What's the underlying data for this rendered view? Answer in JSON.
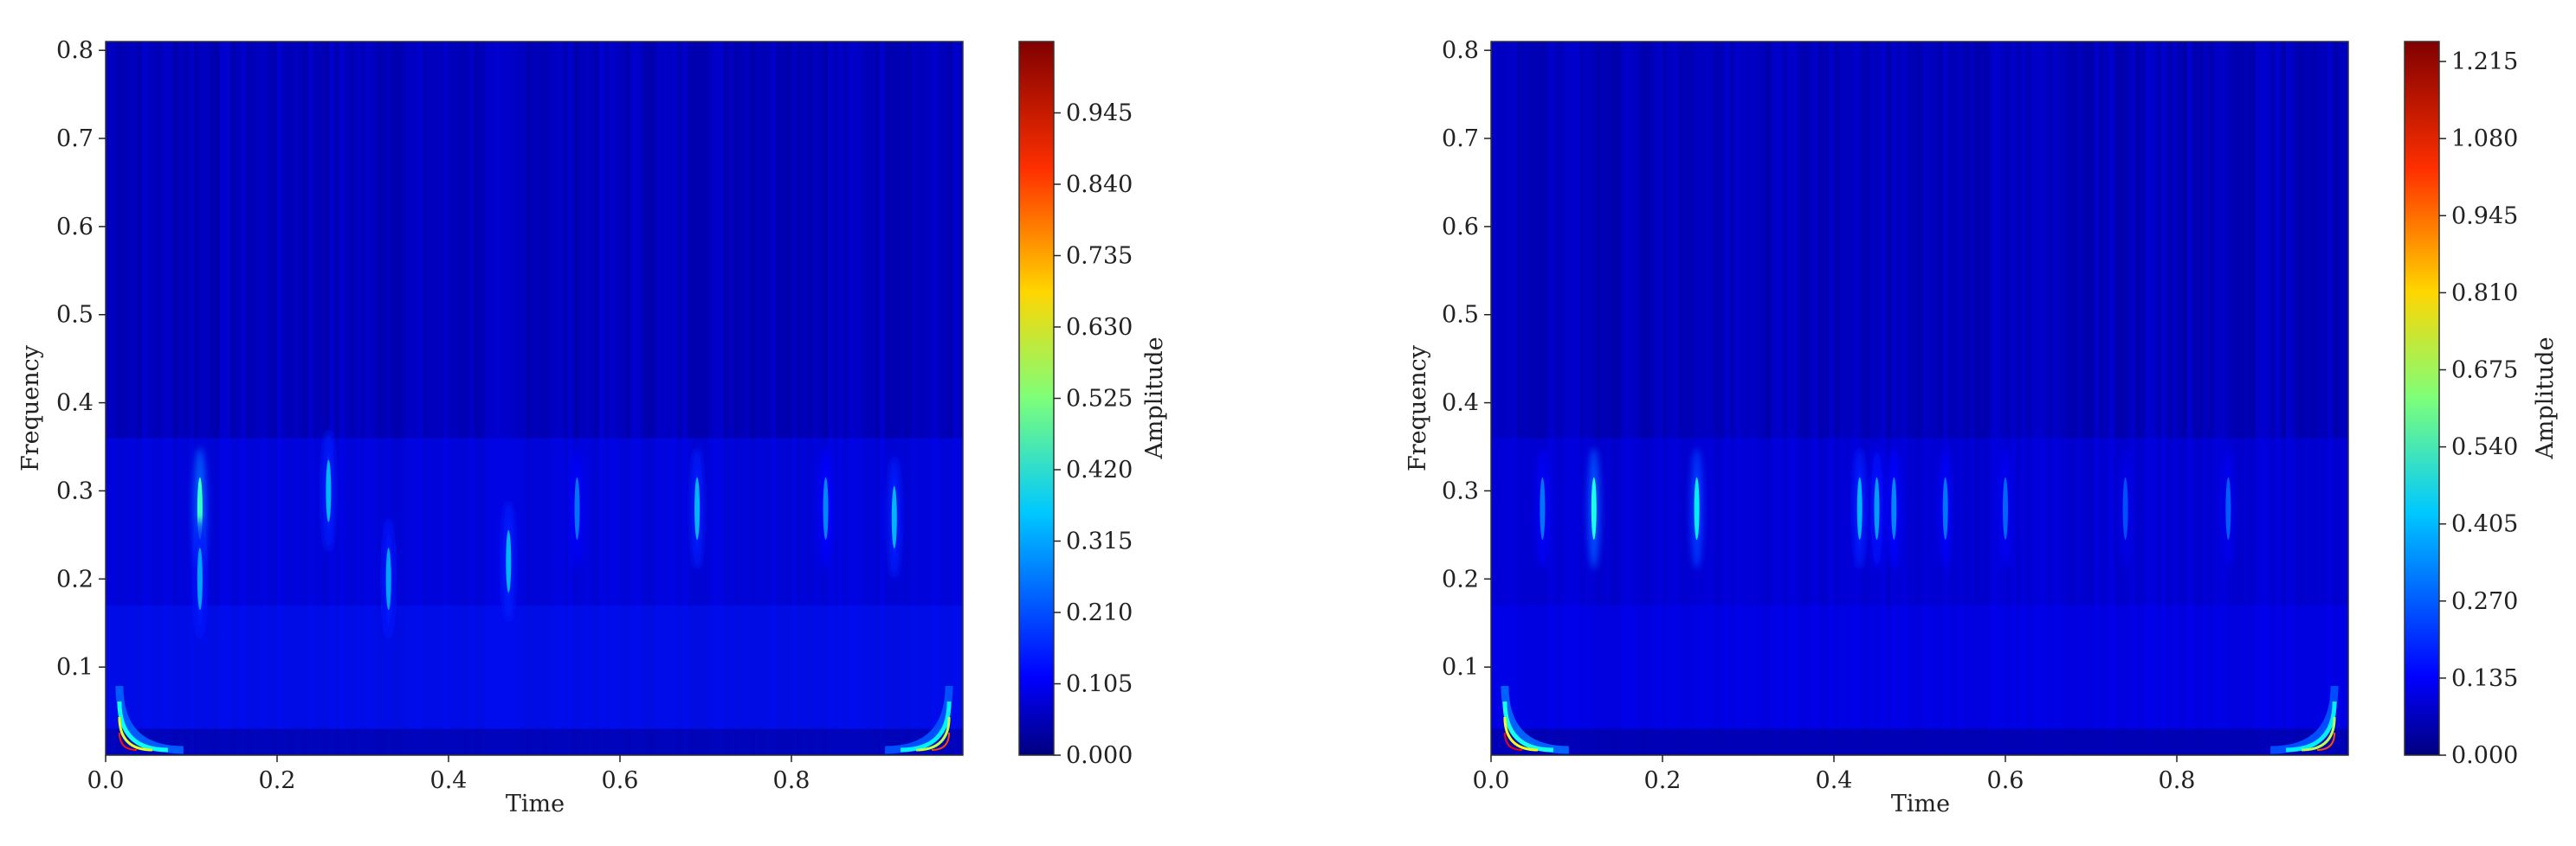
{
  "chart_data": [
    {
      "type": "heatmap",
      "title": "",
      "xlabel": "Time",
      "ylabel": "Frequency",
      "colorbar_label": "Amplitude",
      "xlim": [
        0.0,
        1.0
      ],
      "ylim": [
        0.0,
        0.81
      ],
      "xticks": [
        "0.0",
        "0.2",
        "0.4",
        "0.6",
        "0.8"
      ],
      "xtick_values": [
        0.0,
        0.2,
        0.4,
        0.6,
        0.8
      ],
      "yticks": [
        "0.1",
        "0.2",
        "0.3",
        "0.4",
        "0.5",
        "0.6",
        "0.7",
        "0.8"
      ],
      "ytick_values": [
        0.1,
        0.2,
        0.3,
        0.4,
        0.5,
        0.6,
        0.7,
        0.8
      ],
      "colorbar_ticks": [
        "0.000",
        "0.105",
        "0.210",
        "0.315",
        "0.420",
        "0.525",
        "0.630",
        "0.735",
        "0.840",
        "0.945"
      ],
      "colorbar_tick_values": [
        0.0,
        0.105,
        0.21,
        0.315,
        0.42,
        0.525,
        0.63,
        0.735,
        0.84,
        0.945
      ],
      "color_range": [
        0.0,
        1.05
      ],
      "colormap": "jet",
      "background_amplitude": 0.06,
      "hotspots": [
        {
          "time": 0.01,
          "freq": 0.01,
          "amplitude": 0.9
        },
        {
          "time": 0.99,
          "freq": 0.01,
          "amplitude": 0.85
        },
        {
          "time": 0.11,
          "freq": 0.28,
          "amplitude": 0.45
        },
        {
          "time": 0.11,
          "freq": 0.2,
          "amplitude": 0.3
        },
        {
          "time": 0.26,
          "freq": 0.3,
          "amplitude": 0.32
        },
        {
          "time": 0.33,
          "freq": 0.2,
          "amplitude": 0.3
        },
        {
          "time": 0.47,
          "freq": 0.22,
          "amplitude": 0.32
        },
        {
          "time": 0.55,
          "freq": 0.28,
          "amplitude": 0.25
        },
        {
          "time": 0.69,
          "freq": 0.28,
          "amplitude": 0.32
        },
        {
          "time": 0.84,
          "freq": 0.28,
          "amplitude": 0.27
        },
        {
          "time": 0.92,
          "freq": 0.27,
          "amplitude": 0.32
        }
      ]
    },
    {
      "type": "heatmap",
      "title": "",
      "xlabel": "Time",
      "ylabel": "Frequency",
      "colorbar_label": "Amplitude",
      "xlim": [
        0.0,
        1.0
      ],
      "ylim": [
        0.0,
        0.81
      ],
      "xticks": [
        "0.0",
        "0.2",
        "0.4",
        "0.6",
        "0.8"
      ],
      "xtick_values": [
        0.0,
        0.2,
        0.4,
        0.6,
        0.8
      ],
      "yticks": [
        "0.1",
        "0.2",
        "0.3",
        "0.4",
        "0.5",
        "0.6",
        "0.7",
        "0.8"
      ],
      "ytick_values": [
        0.1,
        0.2,
        0.3,
        0.4,
        0.5,
        0.6,
        0.7,
        0.8
      ],
      "colorbar_ticks": [
        "0.000",
        "0.135",
        "0.270",
        "0.405",
        "0.540",
        "0.675",
        "0.810",
        "0.945",
        "1.080",
        "1.215"
      ],
      "colorbar_tick_values": [
        0.0,
        0.135,
        0.27,
        0.405,
        0.54,
        0.675,
        0.81,
        0.945,
        1.08,
        1.215
      ],
      "color_range": [
        0.0,
        1.25
      ],
      "colormap": "jet",
      "background_amplitude": 0.07,
      "hotspots": [
        {
          "time": 0.01,
          "freq": 0.01,
          "amplitude": 1.1
        },
        {
          "time": 0.99,
          "freq": 0.01,
          "amplitude": 1.0
        },
        {
          "time": 0.12,
          "freq": 0.28,
          "amplitude": 0.5
        },
        {
          "time": 0.06,
          "freq": 0.28,
          "amplitude": 0.3
        },
        {
          "time": 0.24,
          "freq": 0.28,
          "amplitude": 0.45
        },
        {
          "time": 0.43,
          "freq": 0.28,
          "amplitude": 0.38
        },
        {
          "time": 0.45,
          "freq": 0.28,
          "amplitude": 0.35
        },
        {
          "time": 0.47,
          "freq": 0.28,
          "amplitude": 0.32
        },
        {
          "time": 0.53,
          "freq": 0.28,
          "amplitude": 0.3
        },
        {
          "time": 0.6,
          "freq": 0.28,
          "amplitude": 0.28
        },
        {
          "time": 0.74,
          "freq": 0.28,
          "amplitude": 0.25
        },
        {
          "time": 0.86,
          "freq": 0.28,
          "amplitude": 0.27
        }
      ]
    }
  ]
}
